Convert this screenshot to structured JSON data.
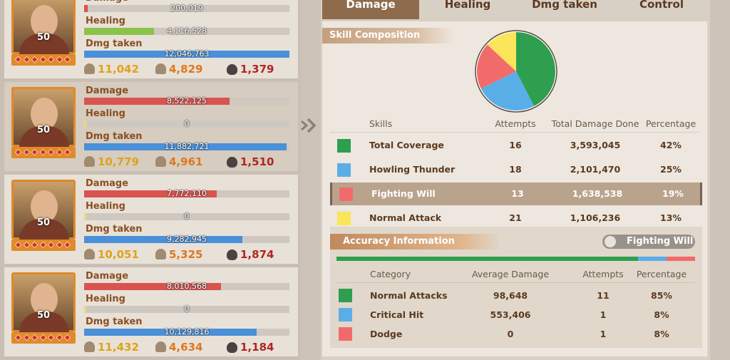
{
  "row_labels": [
    "Damage",
    "Healing",
    "Dmg taken"
  ],
  "commanders": [
    {
      "level": "50",
      "damage": "200,019",
      "healing": "4,116,528",
      "dmg_taken": "12,046,763",
      "stats": [
        "11,042",
        "4,829",
        "1,379"
      ]
    },
    {
      "level": "50",
      "damage": "8,522,125",
      "healing": "0",
      "dmg_taken": "11,882,721",
      "stats": [
        "10,779",
        "4,961",
        "1,510"
      ]
    },
    {
      "level": "50",
      "damage": "7,772,110",
      "healing": "0",
      "dmg_taken": "9,282,945",
      "stats": [
        "10,051",
        "5,325",
        "1,874"
      ]
    },
    {
      "level": "50",
      "damage": "8,010,568",
      "healing": "0",
      "dmg_taken": "10,129,816",
      "stats": [
        "11,432",
        "4,634",
        "1,184"
      ]
    }
  ],
  "tabs": [
    "Damage",
    "Healing",
    "Dmg taken",
    "Control"
  ],
  "skill_composition": {
    "title": "Skill Composition",
    "columns": [
      "Skills",
      "Attempts",
      "Total Damage Done",
      "Percentage"
    ],
    "rows": [
      {
        "name": "Total Coverage",
        "attempts": "16",
        "total": "3,593,045",
        "percentage": "42%",
        "color": "#2e9e4f"
      },
      {
        "name": "Howling Thunder",
        "attempts": "18",
        "total": "2,101,470",
        "percentage": "25%",
        "color": "#5aaee8"
      },
      {
        "name": "Fighting Will",
        "attempts": "13",
        "total": "1,638,538",
        "percentage": "19%",
        "color": "#f26b6b",
        "highlighted": true
      },
      {
        "name": "Normal Attack",
        "attempts": "21",
        "total": "1,106,236",
        "percentage": "13%",
        "color": "#fbe55a"
      }
    ]
  },
  "accuracy": {
    "title": "Accuracy Information",
    "filter": "Fighting Will",
    "columns": [
      "Category",
      "Average Damage",
      "Attempts",
      "Percentage"
    ],
    "rows": [
      {
        "name": "Normal Attacks",
        "average": "98,648",
        "attempts": "11",
        "percentage": "85%",
        "color": "#2e9e4f"
      },
      {
        "name": "Critical Hit",
        "average": "553,406",
        "attempts": "1",
        "percentage": "8%",
        "color": "#5aaee8"
      },
      {
        "name": "Dodge",
        "average": "0",
        "attempts": "1",
        "percentage": "8%",
        "color": "#f26b6b"
      }
    ]
  }
}
